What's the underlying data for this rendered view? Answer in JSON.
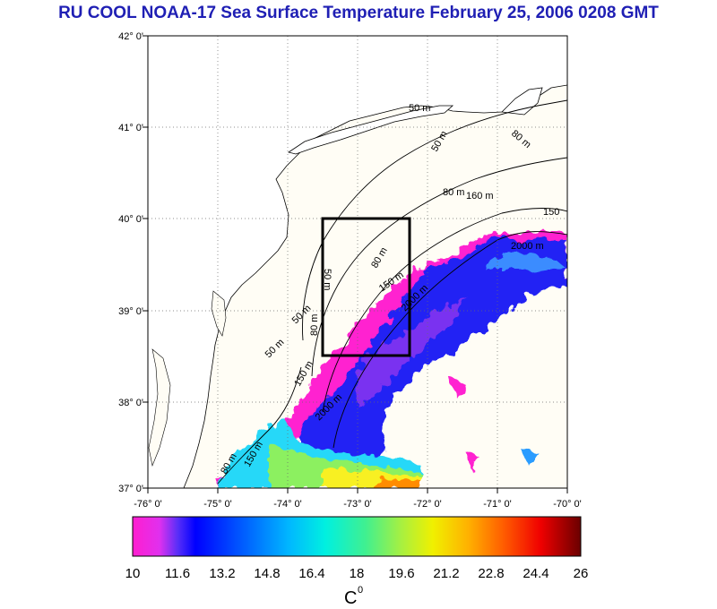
{
  "title": "RU COOL  NOAA-17 Sea Surface Temperature February 25, 2006 0208 GMT",
  "map": {
    "lat_labels": [
      "42° 0'",
      "41° 0'",
      "40° 0'",
      "39° 0'",
      "38° 0'",
      "37° 0'"
    ],
    "lon_labels": [
      "-76° 0'",
      "-75° 0'",
      "-74° 0'",
      "-73° 0'",
      "-72° 0'",
      "-71° 0'",
      "-70° 0'"
    ],
    "lat_range": [
      37,
      42
    ],
    "lon_range": [
      -76,
      -70
    ],
    "grid": "dotted",
    "study_box": {
      "lon": [
        -73.4,
        -72.4
      ],
      "lat": [
        38.5,
        40.0
      ]
    },
    "isobath_labels": [
      "50 m",
      "50 m",
      "80 m",
      "80 m",
      "160 m",
      "150",
      "2000 m",
      "80 m",
      "150 m",
      "2000 m",
      "50 m",
      "50 m",
      "50 m",
      "80 m",
      "150 m",
      "2000 m",
      "80 m",
      "150 m"
    ]
  },
  "colorbar": {
    "ticks": [
      "10",
      "11.6",
      "13.2",
      "14.8",
      "16.4",
      "18",
      "19.6",
      "21.2",
      "22.8",
      "24.4",
      "26"
    ],
    "range": [
      10,
      26
    ],
    "unit_label": "C",
    "unit_superscript": "0",
    "colors": [
      "#ff1ecf",
      "#d02cf0",
      "#6a2ff5",
      "#0000ff",
      "#0046ff",
      "#00a0ff",
      "#00e4f0",
      "#20f0a8",
      "#7cf050",
      "#d8f028",
      "#ffe000",
      "#ffa000",
      "#ff5a00",
      "#ff1000",
      "#d00000",
      "#7a0000"
    ]
  }
}
